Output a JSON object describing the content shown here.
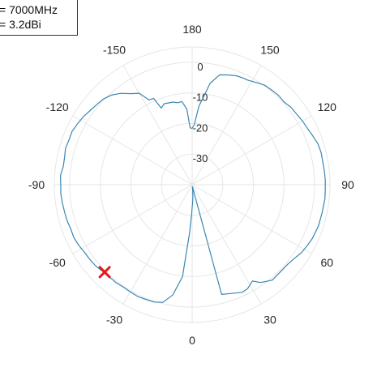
{
  "legend": {
    "line1": "= 7000MHz",
    "line2": "= 3.2dBi"
  },
  "chart_data": {
    "type": "polar-line",
    "theta_zero": "bottom",
    "theta_direction": "counterclockwise",
    "theta_ticks": [
      "0",
      "30",
      "60",
      "90",
      "120",
      "150",
      "180",
      "-150",
      "-120",
      "-90",
      "-60",
      "-30"
    ],
    "theta_tick_values": [
      0,
      30,
      60,
      90,
      120,
      150,
      180,
      -150,
      -120,
      -90,
      -60,
      -30
    ],
    "r_ticks": [
      "-30",
      "-20",
      "-10",
      "0"
    ],
    "r_tick_values": [
      -30,
      -20,
      -10,
      0
    ],
    "rlim": [
      -40,
      5
    ],
    "grid": true,
    "legend_placement": "top-left",
    "series": [
      {
        "color": "#3a87b4",
        "points": [
          [
            0,
            -32.6
          ],
          [
            2,
            -34.4
          ],
          [
            4,
            -36.6
          ],
          [
            6,
            -38.7
          ],
          [
            8,
            -39.3
          ],
          [
            15,
            -2.9
          ],
          [
            20,
            -2.2
          ],
          [
            25,
            -1.2
          ],
          [
            28,
            -1.5
          ],
          [
            32,
            -2.9
          ],
          [
            35,
            -1.0
          ],
          [
            40,
            0.7
          ],
          [
            45,
            0.5
          ],
          [
            50,
            0.6
          ],
          [
            54,
            1.1
          ],
          [
            58,
            2.0
          ],
          [
            62,
            2.5
          ],
          [
            66,
            3.0
          ],
          [
            72,
            3.4
          ],
          [
            78,
            3.4
          ],
          [
            84,
            3.6
          ],
          [
            88,
            3.5
          ],
          [
            92,
            3.5
          ],
          [
            96,
            3.4
          ],
          [
            100,
            3.3
          ],
          [
            104,
            3.4
          ],
          [
            108,
            3.2
          ],
          [
            112,
            2.5
          ],
          [
            116,
            1.9
          ],
          [
            120,
            1.6
          ],
          [
            124,
            1.2
          ],
          [
            128,
            1.0
          ],
          [
            132,
            0.4
          ],
          [
            136,
            0.6
          ],
          [
            140,
            0.4
          ],
          [
            144,
            0.2
          ],
          [
            148,
            -0.6
          ],
          [
            152,
            -1.3
          ],
          [
            155,
            -1.4
          ],
          [
            158,
            -1.6
          ],
          [
            162,
            -2.3
          ],
          [
            166,
            -3.0
          ],
          [
            170,
            -6.4
          ],
          [
            173,
            -11.7
          ],
          [
            175,
            -14.1
          ],
          [
            178,
            -20.4
          ],
          [
            180,
            -21.6
          ],
          [
            182,
            -21.4
          ],
          [
            184,
            -15.3
          ],
          [
            187,
            -12.6
          ],
          [
            190,
            -12.8
          ],
          [
            193,
            -12.3
          ],
          [
            196,
            -12.2
          ],
          [
            199,
            -12.0
          ],
          [
            202,
            -13.0
          ],
          [
            204,
            -9.1
          ],
          [
            207,
            -8.9
          ],
          [
            210,
            -5.5
          ],
          [
            214,
            -4.1
          ],
          [
            218,
            -2.1
          ],
          [
            222,
            -0.6
          ],
          [
            226,
            0.3
          ],
          [
            230,
            0.7
          ],
          [
            234,
            1.2
          ],
          [
            238,
            1.9
          ],
          [
            242,
            2.4
          ],
          [
            246,
            2.9
          ],
          [
            250,
            2.8
          ],
          [
            254,
            3.0
          ],
          [
            258,
            2.6
          ],
          [
            262,
            2.5
          ],
          [
            266,
            3.1
          ],
          [
            270,
            2.9
          ],
          [
            274,
            3.0
          ],
          [
            278,
            2.8
          ],
          [
            282,
            2.6
          ],
          [
            286,
            2.5
          ],
          [
            290,
            2.2
          ],
          [
            294,
            2.3
          ],
          [
            298,
            2.0
          ],
          [
            302,
            1.5
          ],
          [
            306,
            1.4
          ],
          [
            310,
            1.2
          ],
          [
            314,
            0.7
          ],
          [
            318,
            0.5
          ],
          [
            322,
            0.5
          ],
          [
            326,
            0.3
          ],
          [
            330,
            0.4
          ],
          [
            334,
            0.6
          ],
          [
            338,
            0.4
          ],
          [
            342,
            0.3
          ],
          [
            346,
            -0.4
          ],
          [
            350,
            -3.4
          ],
          [
            354,
            -9.8
          ],
          [
            357,
            -24.4
          ],
          [
            359,
            -30.4
          ]
        ]
      }
    ],
    "marker": {
      "shape": "x",
      "color": "#e31a1c",
      "theta": -45,
      "r": 0.4
    }
  }
}
